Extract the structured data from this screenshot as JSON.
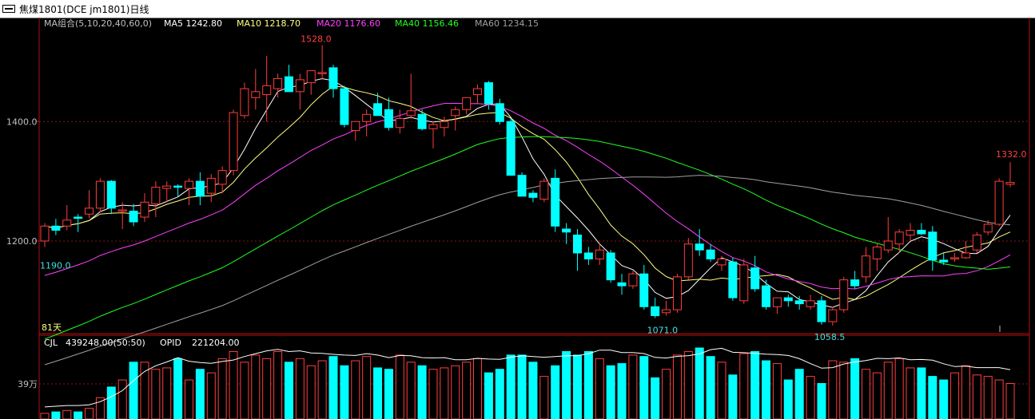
{
  "window": {
    "title": "焦煤1801(DCE jm1801)日线"
  },
  "colors": {
    "up": "#ff3d3d",
    "down": "#00ffff",
    "frame": "#b01010",
    "grid": "#8a1515",
    "axis_text": "#c0c0c0",
    "ma5": "#ffffff",
    "ma10": "#ffff80",
    "ma20": "#ff40ff",
    "ma40": "#20ff20",
    "ma60": "#a0a0a0"
  },
  "legend": {
    "label": "MA组合(5,10,20,40,60,0)",
    "ma5": "MA5 1242.80",
    "ma10": "MA10 1218.70",
    "ma20": "MA20 1176.60",
    "ma40": "MA40 1156.46",
    "ma60": "MA60 1234.15"
  },
  "volume_legend": {
    "cjl": "CJL",
    "cjl_value": "439248.00(50:50)",
    "opid": "OPID",
    "opid_value": "221204.00"
  },
  "annotations": {
    "high": "1528.0",
    "low_start": "1190.0",
    "low_mid": "1071.0",
    "low_last": "1058.5",
    "last_high": "1332.0",
    "days": "81天"
  },
  "chart_data": {
    "type": "candlestick",
    "title": "焦煤1801(DCE jm1801)日线",
    "y_ticks": [
      1200,
      1400
    ],
    "y_tick_labels": [
      "1200.0",
      "1400.0"
    ],
    "price_range": [
      1045,
      1550
    ],
    "volume_tick_label": "39万",
    "candles": [
      [
        1200,
        1230,
        1190,
        1225
      ],
      [
        1225,
        1237,
        1210,
        1218
      ],
      [
        1225,
        1260,
        1218,
        1235
      ],
      [
        1240,
        1245,
        1215,
        1238
      ],
      [
        1245,
        1285,
        1238,
        1255
      ],
      [
        1255,
        1305,
        1248,
        1300
      ],
      [
        1300,
        1302,
        1245,
        1255
      ],
      [
        1250,
        1265,
        1220,
        1252
      ],
      [
        1250,
        1262,
        1225,
        1232
      ],
      [
        1240,
        1280,
        1232,
        1265
      ],
      [
        1262,
        1300,
        1240,
        1290
      ],
      [
        1288,
        1300,
        1265,
        1292
      ],
      [
        1292,
        1295,
        1275,
        1290
      ],
      [
        1288,
        1305,
        1260,
        1300
      ],
      [
        1300,
        1315,
        1260,
        1275
      ],
      [
        1280,
        1312,
        1265,
        1305
      ],
      [
        1295,
        1325,
        1280,
        1318
      ],
      [
        1318,
        1420,
        1310,
        1415
      ],
      [
        1410,
        1465,
        1405,
        1455
      ],
      [
        1440,
        1488,
        1420,
        1450
      ],
      [
        1445,
        1510,
        1400,
        1460
      ],
      [
        1455,
        1480,
        1440,
        1472
      ],
      [
        1475,
        1495,
        1450,
        1450
      ],
      [
        1450,
        1480,
        1420,
        1470
      ],
      [
        1465,
        1485,
        1445,
        1485
      ],
      [
        1480,
        1528,
        1470,
        1482
      ],
      [
        1490,
        1495,
        1440,
        1455
      ],
      [
        1455,
        1460,
        1390,
        1395
      ],
      [
        1385,
        1400,
        1368,
        1400
      ],
      [
        1400,
        1420,
        1375,
        1412
      ],
      [
        1430,
        1448,
        1410,
        1410
      ],
      [
        1420,
        1440,
        1385,
        1390
      ],
      [
        1390,
        1420,
        1380,
        1405
      ],
      [
        1410,
        1480,
        1405,
        1418
      ],
      [
        1412,
        1420,
        1385,
        1388
      ],
      [
        1388,
        1400,
        1355,
        1395
      ],
      [
        1390,
        1408,
        1375,
        1400
      ],
      [
        1410,
        1425,
        1385,
        1420
      ],
      [
        1420,
        1440,
        1412,
        1440
      ],
      [
        1445,
        1462,
        1430,
        1455
      ],
      [
        1465,
        1468,
        1420,
        1430
      ],
      [
        1430,
        1438,
        1395,
        1400
      ],
      [
        1400,
        1405,
        1310,
        1310
      ],
      [
        1310,
        1315,
        1275,
        1275
      ],
      [
        1280,
        1285,
        1265,
        1273
      ],
      [
        1270,
        1305,
        1265,
        1300
      ],
      [
        1305,
        1320,
        1215,
        1225
      ],
      [
        1220,
        1230,
        1195,
        1215
      ],
      [
        1210,
        1220,
        1150,
        1180
      ],
      [
        1180,
        1190,
        1160,
        1170
      ],
      [
        1170,
        1195,
        1160,
        1185
      ],
      [
        1180,
        1185,
        1130,
        1135
      ],
      [
        1130,
        1145,
        1110,
        1125
      ],
      [
        1125,
        1150,
        1120,
        1145
      ],
      [
        1145,
        1160,
        1085,
        1090
      ],
      [
        1090,
        1105,
        1071,
        1075
      ],
      [
        1080,
        1100,
        1075,
        1085
      ],
      [
        1085,
        1145,
        1080,
        1140
      ],
      [
        1140,
        1205,
        1135,
        1195
      ],
      [
        1195,
        1220,
        1175,
        1185
      ],
      [
        1185,
        1195,
        1165,
        1170
      ],
      [
        1160,
        1175,
        1150,
        1170
      ],
      [
        1165,
        1172,
        1100,
        1105
      ],
      [
        1100,
        1170,
        1095,
        1160
      ],
      [
        1155,
        1175,
        1115,
        1120
      ],
      [
        1125,
        1135,
        1085,
        1090
      ],
      [
        1090,
        1105,
        1078,
        1105
      ],
      [
        1105,
        1110,
        1090,
        1100
      ],
      [
        1100,
        1108,
        1085,
        1095
      ],
      [
        1090,
        1110,
        1085,
        1100
      ],
      [
        1100,
        1108,
        1060,
        1065
      ],
      [
        1065,
        1090,
        1058.5,
        1085
      ],
      [
        1085,
        1140,
        1080,
        1135
      ],
      [
        1135,
        1150,
        1120,
        1125
      ],
      [
        1140,
        1190,
        1130,
        1175
      ],
      [
        1170,
        1195,
        1150,
        1190
      ],
      [
        1185,
        1240,
        1180,
        1200
      ],
      [
        1195,
        1220,
        1180,
        1215
      ],
      [
        1210,
        1230,
        1200,
        1218
      ],
      [
        1218,
        1230,
        1210,
        1212
      ],
      [
        1215,
        1225,
        1150,
        1168
      ],
      [
        1168,
        1180,
        1160,
        1165
      ],
      [
        1170,
        1180,
        1165,
        1172
      ],
      [
        1172,
        1200,
        1170,
        1180
      ],
      [
        1185,
        1215,
        1180,
        1210
      ],
      [
        1215,
        1235,
        1210,
        1228
      ],
      [
        1228,
        1305,
        1225,
        1300
      ],
      [
        1295,
        1332,
        1290,
        1298
      ]
    ],
    "volumes": [
      0.08,
      0.1,
      0.12,
      0.1,
      0.15,
      0.3,
      0.45,
      0.55,
      0.8,
      0.8,
      0.7,
      0.72,
      0.85,
      0.55,
      0.7,
      0.65,
      0.85,
      0.95,
      0.8,
      0.9,
      0.85,
      0.95,
      0.8,
      0.85,
      0.75,
      0.82,
      0.88,
      0.75,
      0.82,
      0.88,
      0.72,
      0.7,
      0.9,
      0.8,
      0.75,
      0.7,
      0.72,
      0.75,
      0.8,
      0.85,
      0.65,
      0.7,
      0.9,
      0.9,
      0.8,
      0.6,
      0.75,
      0.95,
      0.9,
      0.95,
      0.85,
      0.75,
      0.78,
      0.9,
      0.88,
      0.58,
      0.7,
      0.9,
      0.95,
      1.0,
      0.88,
      0.8,
      0.62,
      0.92,
      0.95,
      0.82,
      0.78,
      0.55,
      0.7,
      0.6,
      0.5,
      0.82,
      0.8,
      0.85,
      0.7,
      0.65,
      0.8,
      0.85,
      0.72,
      0.72,
      0.6,
      0.55,
      0.65,
      0.75,
      0.62,
      0.6,
      0.55,
      0.5
    ],
    "volume_up_flags_note": "up days drawn as outlined red bars, down days as filled cyan",
    "ma_last": {
      "MA5": 1242.8,
      "MA10": 1218.7,
      "MA20": 1176.6,
      "MA40": 1156.46,
      "MA60": 1234.15
    }
  }
}
